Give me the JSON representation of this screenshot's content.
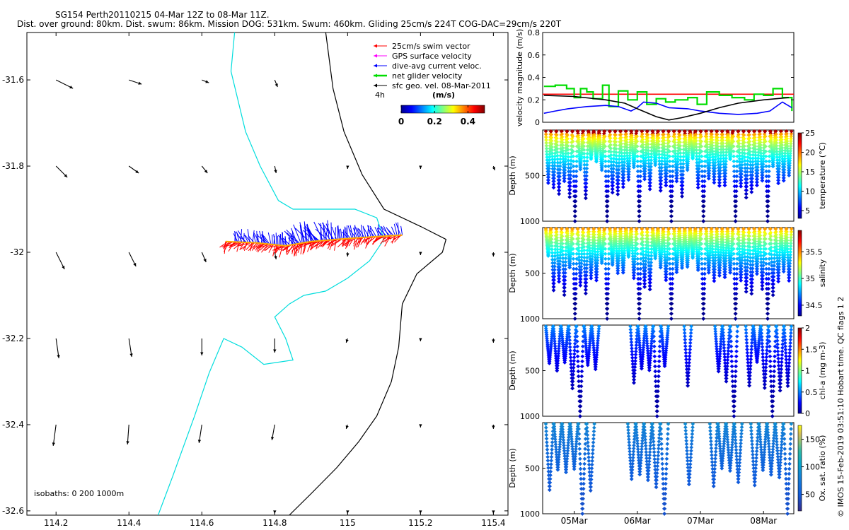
{
  "header": {
    "title": "SG154 Perth20110215 04-Mar 12Z to 08-Mar 11Z.",
    "subtitle": "Dist. over ground: 80km. Dist. swum: 86km. Mission DOG: 531km. Swum: 460km. Gliding 25cm/s 224T COG-DAC=29cm/s 220T"
  },
  "credit": "© IMOS 15-Feb-2019 03:51:10 Hobart time. QC flags 1  2",
  "chart_data": [
    {
      "type": "scatter",
      "panel": "map",
      "x_ticks": [
        "114.2",
        "114.4",
        "114.6",
        "114.8",
        "115",
        "115.2",
        "115.4"
      ],
      "y_ticks": [
        "-31.6",
        "-31.8",
        "-32",
        "-32.2",
        "-32.4",
        "-32.6"
      ],
      "xlim": [
        114.12,
        115.44
      ],
      "ylim": [
        -32.61,
        -31.49
      ],
      "legend": {
        "placement": "top-right",
        "entries": [
          {
            "label": "25cm/s swim vector",
            "color": "#ff0000"
          },
          {
            "label": "GPS surface velocity",
            "color": "#ff00ff"
          },
          {
            "label": "dive-avg current veloc.",
            "color": "#0000ff"
          },
          {
            "label": "net glider velocity",
            "color": "#00dd00"
          },
          {
            "label": "sfc geo. vel. 08-Mar-2011",
            "color": "#000000"
          }
        ],
        "scale_text": "4h"
      },
      "colorbar": {
        "title": "(m/s)",
        "ticks": [
          "0",
          "0.2",
          "0.4"
        ],
        "range": [
          0,
          0.5
        ]
      },
      "isobath_text": "isobaths: 0   200  1000m",
      "track": [
        {
          "lon": 114.665,
          "lat": -31.975
        },
        {
          "lon": 114.75,
          "lat": -31.978
        },
        {
          "lon": 114.83,
          "lat": -31.985
        },
        {
          "lon": 114.9,
          "lat": -31.975
        },
        {
          "lon": 114.97,
          "lat": -31.97
        },
        {
          "lon": 115.05,
          "lat": -31.965
        },
        {
          "lon": 115.15,
          "lat": -31.96
        }
      ],
      "geo_vectors": [
        {
          "lon": 114.2,
          "lat": -31.6,
          "u": 0.12,
          "v": -0.06
        },
        {
          "lon": 114.4,
          "lat": -31.6,
          "u": 0.09,
          "v": -0.03
        },
        {
          "lon": 114.6,
          "lat": -31.6,
          "u": 0.05,
          "v": -0.02
        },
        {
          "lon": 114.8,
          "lat": -31.6,
          "u": 0.02,
          "v": -0.05
        },
        {
          "lon": 114.2,
          "lat": -31.8,
          "u": 0.08,
          "v": -0.08
        },
        {
          "lon": 114.4,
          "lat": -31.8,
          "u": 0.07,
          "v": -0.05
        },
        {
          "lon": 114.6,
          "lat": -31.8,
          "u": 0.04,
          "v": -0.05
        },
        {
          "lon": 114.8,
          "lat": -31.8,
          "u": 0.01,
          "v": -0.05
        },
        {
          "lon": 115.0,
          "lat": -31.8,
          "u": 0.0,
          "v": -0.02
        },
        {
          "lon": 115.2,
          "lat": -31.8,
          "u": 0.0,
          "v": -0.02
        },
        {
          "lon": 115.4,
          "lat": -31.8,
          "u": 0.01,
          "v": -0.03
        },
        {
          "lon": 114.2,
          "lat": -32.0,
          "u": 0.06,
          "v": -0.12
        },
        {
          "lon": 114.4,
          "lat": -32.0,
          "u": 0.05,
          "v": -0.1
        },
        {
          "lon": 114.6,
          "lat": -32.0,
          "u": 0.03,
          "v": -0.07
        },
        {
          "lon": 114.8,
          "lat": -32.0,
          "u": 0.01,
          "v": -0.05
        },
        {
          "lon": 115.0,
          "lat": -32.0,
          "u": 0.0,
          "v": -0.03
        },
        {
          "lon": 115.2,
          "lat": -32.0,
          "u": 0.0,
          "v": -0.02
        },
        {
          "lon": 115.4,
          "lat": -32.0,
          "u": 0.0,
          "v": -0.03
        },
        {
          "lon": 114.2,
          "lat": -32.2,
          "u": 0.02,
          "v": -0.14
        },
        {
          "lon": 114.4,
          "lat": -32.2,
          "u": 0.02,
          "v": -0.13
        },
        {
          "lon": 114.6,
          "lat": -32.2,
          "u": 0.0,
          "v": -0.12
        },
        {
          "lon": 114.8,
          "lat": -32.2,
          "u": 0.0,
          "v": -0.1
        },
        {
          "lon": 115.0,
          "lat": -32.2,
          "u": -0.01,
          "v": -0.03
        },
        {
          "lon": 115.2,
          "lat": -32.2,
          "u": 0.0,
          "v": -0.02
        },
        {
          "lon": 115.4,
          "lat": -32.2,
          "u": 0.0,
          "v": -0.03
        },
        {
          "lon": 114.2,
          "lat": -32.4,
          "u": -0.02,
          "v": -0.15
        },
        {
          "lon": 114.4,
          "lat": -32.4,
          "u": -0.01,
          "v": -0.14
        },
        {
          "lon": 114.6,
          "lat": -32.4,
          "u": -0.02,
          "v": -0.13
        },
        {
          "lon": 114.8,
          "lat": -32.4,
          "u": -0.02,
          "v": -0.11
        },
        {
          "lon": 115.0,
          "lat": -32.4,
          "u": -0.01,
          "v": -0.03
        },
        {
          "lon": 115.2,
          "lat": -32.4,
          "u": 0.0,
          "v": -0.02
        },
        {
          "lon": 115.4,
          "lat": -32.4,
          "u": 0.0,
          "v": -0.03
        },
        {
          "lon": 114.8,
          "lat": -32.6,
          "u": 0.0,
          "v": -0.02
        },
        {
          "lon": 115.0,
          "lat": -32.6,
          "u": 0.0,
          "v": -0.02
        },
        {
          "lon": 115.2,
          "lat": -32.6,
          "u": 0.0,
          "v": -0.02
        },
        {
          "lon": 115.4,
          "lat": -32.6,
          "u": 0.0,
          "v": -0.02
        }
      ],
      "isobaths": {
        "isobath_0": {
          "color": "#000000",
          "points": [
            [
              114.94,
              -31.49
            ],
            [
              114.96,
              -31.62
            ],
            [
              114.99,
              -31.72
            ],
            [
              115.04,
              -31.82
            ],
            [
              115.1,
              -31.9
            ],
            [
              115.2,
              -31.94
            ],
            [
              115.27,
              -31.97
            ],
            [
              115.26,
              -32.0
            ],
            [
              115.19,
              -32.05
            ],
            [
              115.15,
              -32.12
            ],
            [
              115.14,
              -32.22
            ],
            [
              115.12,
              -32.3
            ],
            [
              115.08,
              -32.38
            ],
            [
              115.03,
              -32.44
            ],
            [
              114.97,
              -32.5
            ],
            [
              114.9,
              -32.56
            ],
            [
              114.84,
              -32.61
            ]
          ]
        },
        "isobath_200": {
          "color": "#00dddd",
          "points": [
            [
              114.69,
              -31.49
            ],
            [
              114.68,
              -31.58
            ],
            [
              114.7,
              -31.65
            ],
            [
              114.72,
              -31.72
            ],
            [
              114.76,
              -31.8
            ],
            [
              114.81,
              -31.88
            ],
            [
              114.85,
              -31.9
            ],
            [
              114.93,
              -31.9
            ],
            [
              115.02,
              -31.9
            ],
            [
              115.08,
              -31.92
            ],
            [
              115.1,
              -31.97
            ],
            [
              115.06,
              -32.02
            ],
            [
              115.0,
              -32.06
            ],
            [
              114.94,
              -32.09
            ],
            [
              114.88,
              -32.1
            ],
            [
              114.84,
              -32.12
            ],
            [
              114.8,
              -32.15
            ],
            [
              114.83,
              -32.2
            ],
            [
              114.85,
              -32.25
            ],
            [
              114.77,
              -32.26
            ],
            [
              114.71,
              -32.22
            ],
            [
              114.66,
              -32.2
            ],
            [
              114.62,
              -32.28
            ],
            [
              114.58,
              -32.38
            ],
            [
              114.55,
              -32.45
            ],
            [
              114.52,
              -32.52
            ],
            [
              114.48,
              -32.61
            ]
          ]
        }
      }
    },
    {
      "type": "line",
      "panel": "velocity",
      "ylabel": "velocity magnitude (m/s)",
      "ylim": [
        0,
        0.8
      ],
      "y_ticks": [
        "0",
        "0.2",
        "0.4",
        "0.6",
        "0.8"
      ],
      "xlim": [
        4.5,
        8.48
      ],
      "series": [
        {
          "name": "25cm/s swim vector",
          "color": "#ff0000",
          "x": [
            4.5,
            8.48
          ],
          "values": [
            0.25,
            0.25
          ]
        },
        {
          "name": "net glider velocity",
          "color": "#00dd00",
          "x": [
            4.52,
            4.7,
            4.88,
            5.0,
            5.1,
            5.2,
            5.3,
            5.45,
            5.55,
            5.7,
            5.85,
            6.0,
            6.15,
            6.3,
            6.45,
            6.6,
            6.8,
            6.95,
            7.1,
            7.3,
            7.5,
            7.7,
            7.85,
            8.0,
            8.15,
            8.3,
            8.45
          ],
          "values": [
            0.32,
            0.33,
            0.3,
            0.22,
            0.3,
            0.27,
            0.21,
            0.33,
            0.14,
            0.28,
            0.2,
            0.27,
            0.16,
            0.21,
            0.18,
            0.2,
            0.22,
            0.16,
            0.27,
            0.24,
            0.22,
            0.2,
            0.25,
            0.24,
            0.3,
            0.22,
            0.1
          ]
        },
        {
          "name": "dive-avg current veloc.",
          "color": "#0000ff",
          "x": [
            4.52,
            4.7,
            4.9,
            5.2,
            5.5,
            5.7,
            5.9,
            6.0,
            6.1,
            6.3,
            6.5,
            6.8,
            7.0,
            7.3,
            7.6,
            7.9,
            8.1,
            8.3,
            8.45
          ],
          "values": [
            0.08,
            0.1,
            0.12,
            0.14,
            0.15,
            0.14,
            0.1,
            0.13,
            0.18,
            0.17,
            0.13,
            0.12,
            0.1,
            0.08,
            0.07,
            0.08,
            0.1,
            0.18,
            0.13
          ]
        },
        {
          "name": "sfc geo. vel. 08-Mar-2011",
          "color": "#000000",
          "x": [
            4.52,
            5.0,
            5.5,
            5.8,
            6.0,
            6.3,
            6.5,
            6.7,
            7.0,
            7.3,
            7.6,
            8.0,
            8.4
          ],
          "values": [
            0.24,
            0.23,
            0.2,
            0.17,
            0.12,
            0.05,
            0.02,
            0.04,
            0.08,
            0.13,
            0.17,
            0.2,
            0.22
          ]
        }
      ]
    },
    {
      "type": "scatter",
      "panel": "temperature",
      "ylabel": "Depth (m)",
      "ylim": [
        1000,
        0
      ],
      "y_ticks": [
        "500",
        "1000"
      ],
      "colorbar": {
        "label": "temperature (°C)",
        "ticks": [
          "5",
          "10",
          "15",
          "20",
          "25"
        ],
        "range": [
          3,
          25
        ]
      },
      "surface_value": 23,
      "deep_value": 3,
      "dives": {
        "start": 4.55,
        "end": 8.45,
        "count": 46,
        "deep_every": 6,
        "deep_offset": 1,
        "max_depth": 1000,
        "min_shallow_depth": 300
      }
    },
    {
      "type": "scatter",
      "panel": "salinity",
      "ylabel": "Depth (m)",
      "ylim": [
        1000,
        0
      ],
      "y_ticks": [
        "500",
        "1000"
      ],
      "colorbar": {
        "label": "salinity",
        "ticks": [
          "34.5",
          "35",
          "35.5"
        ],
        "range": [
          34.3,
          35.9
        ]
      },
      "surface_value": 35.6,
      "deep_value": 34.3,
      "dives": {
        "start": 4.55,
        "end": 8.45,
        "count": 46,
        "deep_every": 6,
        "deep_offset": 1,
        "max_depth": 1000,
        "min_shallow_depth": 300
      }
    },
    {
      "type": "scatter",
      "panel": "chlorophyll",
      "ylabel": "Depth (m)",
      "ylim": [
        1000,
        0
      ],
      "y_ticks": [
        "500",
        "1000"
      ],
      "colorbar": {
        "label": "chl-a (mg m-3)",
        "ticks": [
          "0",
          "0.5",
          "1",
          "1.5",
          "2"
        ],
        "range": [
          0,
          2
        ]
      },
      "surface_value": 0.6,
      "deep_value": 0.05,
      "dives": {
        "start": 4.55,
        "end": 8.45,
        "count": 32,
        "deep_every": 5,
        "deep_offset": 1,
        "max_depth": 1000,
        "min_shallow_depth": 400,
        "gaps": [
          [
            5.35,
            5.9
          ],
          [
            6.5,
            6.75
          ],
          [
            6.85,
            7.2
          ],
          [
            7.6,
            7.75
          ]
        ]
      }
    },
    {
      "type": "scatter",
      "panel": "oxygen",
      "ylabel": "Depth (m)",
      "ylim": [
        1000,
        0
      ],
      "y_ticks": [
        "500",
        "1000"
      ],
      "colorbar": {
        "label": "Ox. sat. ratio (%)",
        "ticks": [
          "50",
          "100",
          "150"
        ],
        "range": [
          20,
          175
        ]
      },
      "surface_value": 95,
      "deep_value": 45,
      "x_ticks": [
        "05Mar",
        "06Mar",
        "07Mar",
        "08Mar"
      ],
      "dives": {
        "start": 4.55,
        "end": 8.45,
        "count": 30,
        "deep_every": 5,
        "deep_offset": 1,
        "max_depth": 1000,
        "min_shallow_depth": 500,
        "gaps": [
          [
            5.35,
            5.9
          ],
          [
            6.5,
            6.75
          ],
          [
            6.85,
            7.2
          ],
          [
            7.6,
            7.75
          ]
        ]
      }
    }
  ]
}
